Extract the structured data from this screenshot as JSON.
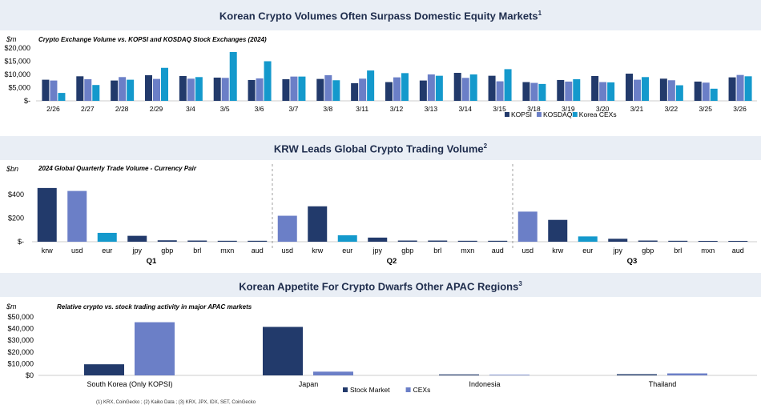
{
  "colors": {
    "navy": "#223a6b",
    "periwinkle": "#6b7fc7",
    "cyan": "#1499cc",
    "band": "#e9eef5",
    "title": "#1f2d4d"
  },
  "panels": {
    "p1": {
      "title": "Korean Crypto Volumes Often Surpass Domestic Equity Markets",
      "sup": "1"
    },
    "p2": {
      "title": "KRW Leads Global Crypto Trading Volume",
      "sup": "2"
    },
    "p3": {
      "title": "Korean Appetite For Crypto Dwarfs Other APAC Regions",
      "sup": "3"
    }
  },
  "footnote": "(1) KRX, CoinGecko ; (2) Kaiko Data ; (3) KRX, JPX, IDX, SET, CoinGecko",
  "chart_data": [
    {
      "type": "bar",
      "title": "Crypto Exchange Volume vs. KOPSI and KOSDAQ Stock Exchanges (2024)",
      "unit": "$m",
      "yticks": [
        "$20,000",
        "$15,000",
        "$10,000",
        "$5,000",
        "$-"
      ],
      "ylim": [
        0,
        20000
      ],
      "categories": [
        "2/26",
        "2/27",
        "2/28",
        "2/29",
        "3/4",
        "3/5",
        "3/6",
        "3/7",
        "3/8",
        "3/11",
        "3/12",
        "3/13",
        "3/14",
        "3/15",
        "3/18",
        "3/19",
        "3/20",
        "3/21",
        "3/22",
        "3/25",
        "3/26"
      ],
      "series": [
        {
          "name": "KOPSI",
          "color": "navy",
          "values": [
            8000,
            9300,
            7700,
            9700,
            9400,
            8800,
            7900,
            8200,
            8300,
            6700,
            7100,
            7700,
            10600,
            9500,
            7100,
            7900,
            9400,
            10300,
            8400,
            7300,
            8900
          ]
        },
        {
          "name": "KOSDAQ",
          "color": "periwinkle",
          "values": [
            7700,
            8200,
            9000,
            8300,
            8400,
            8700,
            8500,
            9200,
            9700,
            8400,
            8900,
            10000,
            8700,
            7400,
            6800,
            7300,
            7100,
            8000,
            7800,
            6900,
            9800
          ]
        },
        {
          "name": "Korea CEXs",
          "color": "cyan",
          "values": [
            3000,
            6000,
            8000,
            12500,
            9000,
            18500,
            15000,
            9200,
            7800,
            11500,
            10500,
            9500,
            10000,
            12000,
            6400,
            8200,
            7000,
            9000,
            5900,
            4600,
            9300
          ]
        }
      ],
      "legend": "bottom-right"
    },
    {
      "type": "bar",
      "title": "2024 Global Quarterly Trade Volume - Currency Pair",
      "unit": "$bn",
      "yticks": [
        "$400",
        "$200",
        "$-"
      ],
      "ylim": [
        0,
        500
      ],
      "groups": [
        {
          "name": "Q1",
          "labels": [
            "krw",
            "usd",
            "eur",
            "jpy",
            "gbp",
            "brl",
            "mxn",
            "aud"
          ],
          "values": [
            455,
            430,
            75,
            50,
            12,
            10,
            8,
            8
          ],
          "colors": [
            "navy",
            "periwinkle",
            "cyan",
            "navy",
            "navy",
            "navy",
            "navy",
            "navy"
          ]
        },
        {
          "name": "Q2",
          "labels": [
            "usd",
            "krw",
            "eur",
            "jpy",
            "gbp",
            "brl",
            "mxn",
            "aud"
          ],
          "values": [
            220,
            300,
            55,
            35,
            10,
            10,
            8,
            8
          ],
          "colors": [
            "periwinkle",
            "navy",
            "cyan",
            "navy",
            "navy",
            "navy",
            "navy",
            "navy"
          ]
        },
        {
          "name": "Q3",
          "labels": [
            "usd",
            "krw",
            "eur",
            "jpy",
            "gbp",
            "brl",
            "mxn",
            "aud"
          ],
          "values": [
            255,
            185,
            45,
            25,
            10,
            8,
            7,
            7
          ],
          "colors": [
            "periwinkle",
            "navy",
            "cyan",
            "navy",
            "navy",
            "navy",
            "navy",
            "navy"
          ]
        }
      ]
    },
    {
      "type": "bar",
      "title": "Relative crypto vs. stock trading activity in major APAC markets",
      "unit": "$m",
      "yticks": [
        "$50,000",
        "$40,000",
        "$30,000",
        "$20,000",
        "$10,000",
        "$0"
      ],
      "ylim": [
        0,
        50000
      ],
      "categories": [
        "South Korea (Only KOPSI)",
        "Japan",
        "Indonesia",
        "Thailand"
      ],
      "series": [
        {
          "name": "Stock Market",
          "color": "navy",
          "values": [
            9500,
            41500,
            800,
            1000
          ]
        },
        {
          "name": "CEXs",
          "color": "periwinkle",
          "values": [
            45500,
            3200,
            300,
            1700
          ]
        }
      ],
      "legend": "bottom-center"
    }
  ]
}
